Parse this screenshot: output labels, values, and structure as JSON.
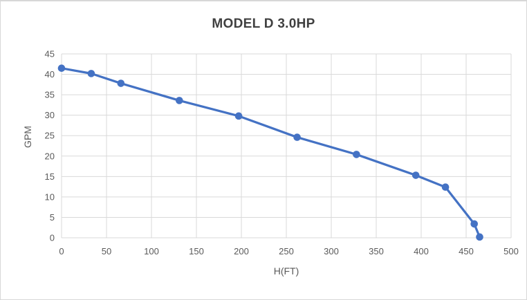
{
  "frame": {
    "background": "#ffffff",
    "border_color": "#d7d7d7"
  },
  "chart_data": {
    "type": "line",
    "title": "MODEL D 3.0HP",
    "xlabel": "H(FT)",
    "ylabel": "GPM",
    "x": [
      0,
      33,
      66,
      131,
      197,
      262,
      328,
      394,
      427,
      459,
      465
    ],
    "y": [
      41.5,
      40.2,
      37.8,
      33.6,
      29.8,
      24.6,
      20.4,
      15.3,
      12.4,
      3.4,
      0.2
    ],
    "xlim": [
      0,
      500
    ],
    "ylim": [
      0,
      45
    ],
    "x_ticks": [
      0,
      50,
      100,
      150,
      200,
      250,
      300,
      350,
      400,
      450,
      500
    ],
    "y_ticks": [
      0,
      5,
      10,
      15,
      20,
      25,
      30,
      35,
      40,
      45
    ],
    "grid": true,
    "legend": "none",
    "line_color": "#4472c4",
    "marker": "circle",
    "marker_color": "#4472c4",
    "grid_color": "#d9d9d9",
    "tick_label_color": "#595959",
    "title_color": "#404040"
  }
}
